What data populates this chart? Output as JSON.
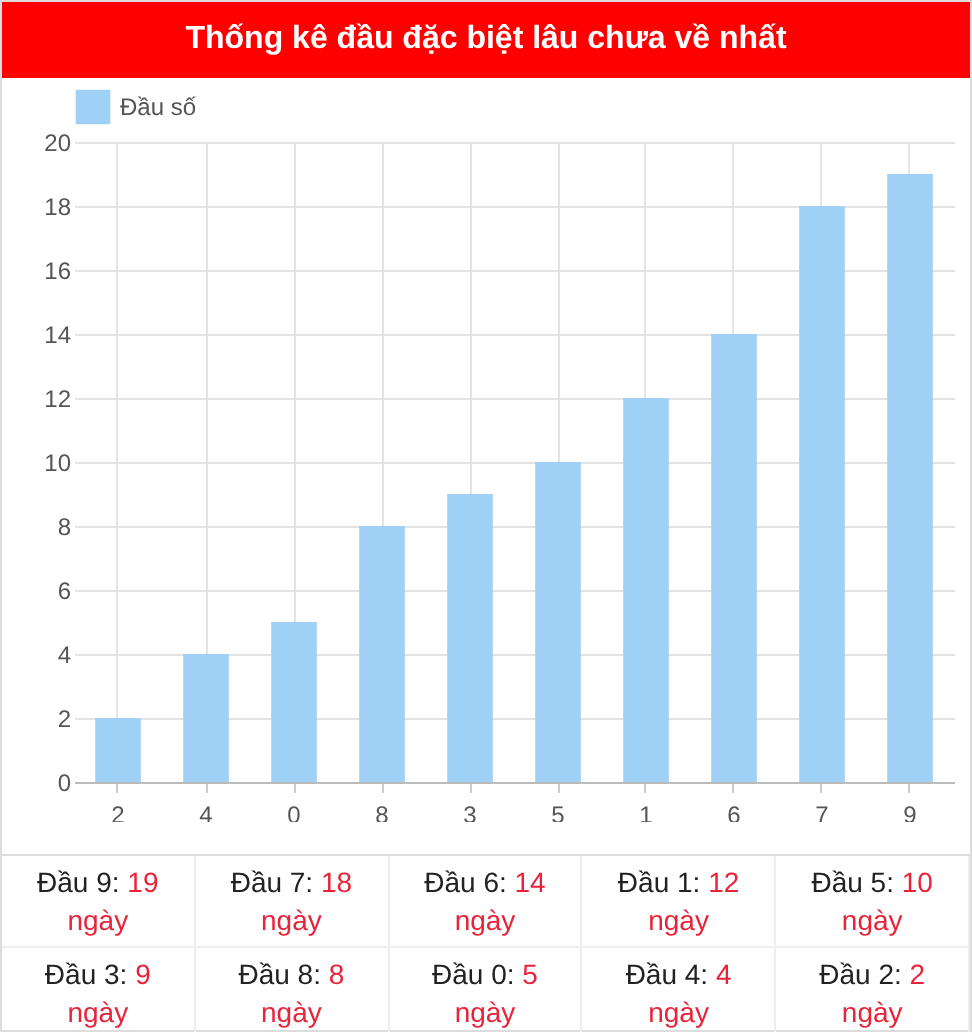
{
  "chart_data": {
    "type": "bar",
    "title": "Thống kê đầu đặc biệt lâu chưa về nhất",
    "categories": [
      "2",
      "4",
      "0",
      "8",
      "3",
      "5",
      "1",
      "6",
      "7",
      "9"
    ],
    "series": [
      {
        "name": "Đầu số",
        "color": "#9fd0f5",
        "values": [
          2,
          4,
          5,
          8,
          9,
          10,
          12,
          14,
          18,
          19
        ]
      }
    ],
    "ylim": [
      0,
      20
    ],
    "yticks": [
      0,
      2,
      4,
      6,
      8,
      10,
      12,
      14,
      16,
      18,
      20
    ],
    "grid": true,
    "legend": "top",
    "annotations": [
      "Đầu 9: 19\nngày",
      "Đầu 7: 18\nngày",
      "Đầu 6: 14\nngày",
      "Đầu 1: 12\nngày",
      "Đầu 5: 10\nngày",
      "Đầu 3: 9\nngày",
      "Đầu 8: 8\nngày",
      "Đầu 0: 5\nngày",
      "Đầu 4: 4\nngày",
      "Đầu 2: 2\nngày"
    ]
  }
}
